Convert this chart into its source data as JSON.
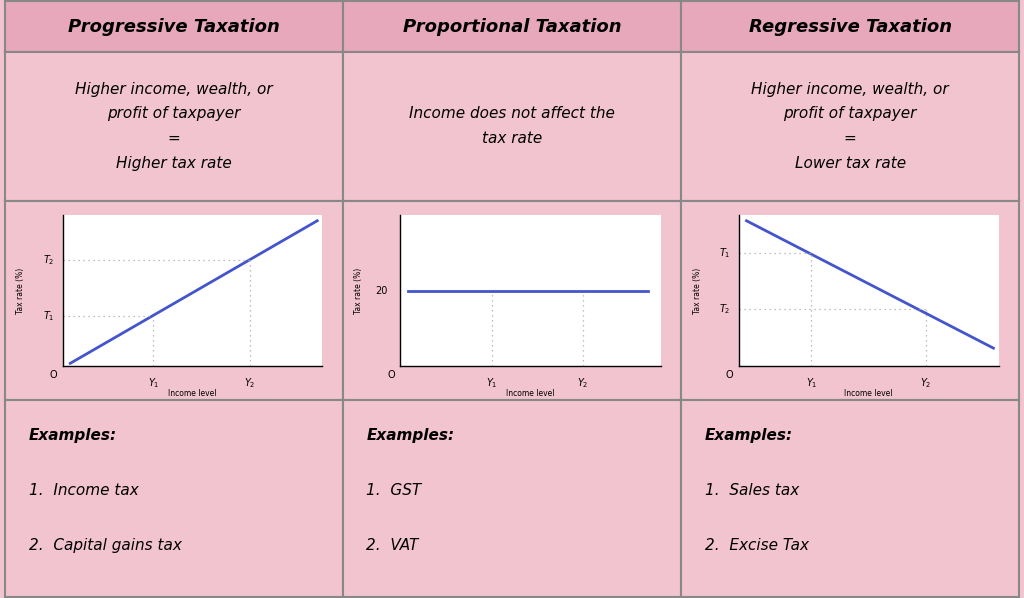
{
  "bg_color": "#f2c4d0",
  "header_bg": "#e8a8bc",
  "cell_bg": "#f2c4d0",
  "graph_bg": "#ffffff",
  "border_color": "#888888",
  "line_color": "#4455cc",
  "dashed_color": "#aaaaaa",
  "headers": [
    "Progressive Taxation",
    "Proportional Taxation",
    "Regressive Taxation"
  ],
  "descriptions": [
    "Higher income, wealth, or\nprofit of taxpayer\n=\nHigher tax rate",
    "Income does not affect the\ntax rate",
    "Higher income, wealth, or\nprofit of taxpayer\n=\nLower tax rate"
  ],
  "examples": [
    [
      "Examples:",
      "1.  Income tax",
      "2.  Capital gains tax"
    ],
    [
      "Examples:",
      "1.  GST",
      "2.  VAT"
    ],
    [
      "Examples:",
      "1.  Sales tax",
      "2.  Excise Tax"
    ]
  ],
  "header_fontsize": 13,
  "desc_fontsize": 11,
  "example_fontsize": 11,
  "axis_label_fontsize": 5.5,
  "tick_label_fontsize": 7,
  "col_splits": [
    0.0,
    0.333,
    0.667,
    1.0
  ],
  "row_splits": [
    0.0,
    0.085,
    0.335,
    0.67,
    1.0
  ]
}
